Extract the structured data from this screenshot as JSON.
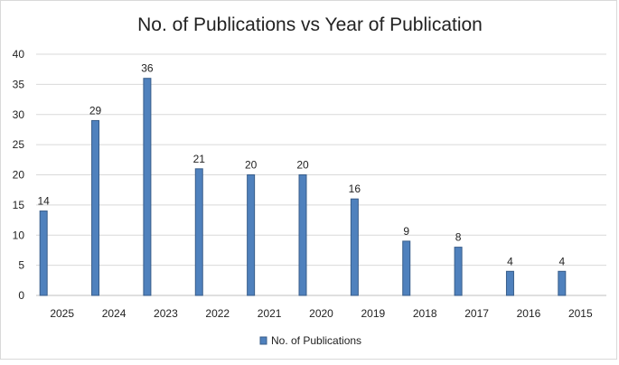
{
  "chart_data": {
    "type": "bar",
    "title": "No. of Publications vs Year of Publication",
    "xlabel": "",
    "ylabel": "",
    "categories": [
      "2025",
      "2024",
      "2023",
      "2022",
      "2021",
      "2020",
      "2019",
      "2018",
      "2017",
      "2016",
      "2015"
    ],
    "series": [
      {
        "name": "No. of Publications",
        "values": [
          14,
          29,
          36,
          21,
          20,
          20,
          16,
          9,
          8,
          4,
          4
        ],
        "color": "#4f81bd"
      }
    ],
    "ylim": [
      0,
      40
    ],
    "yticks": [
      "0",
      "5",
      "10",
      "15",
      "20",
      "25",
      "30",
      "35",
      "40"
    ],
    "data_labels": [
      "14",
      "29",
      "36",
      "21",
      "20",
      "20",
      "16",
      "9",
      "8",
      "4",
      "4"
    ],
    "grid": true,
    "legend": "bottom"
  }
}
